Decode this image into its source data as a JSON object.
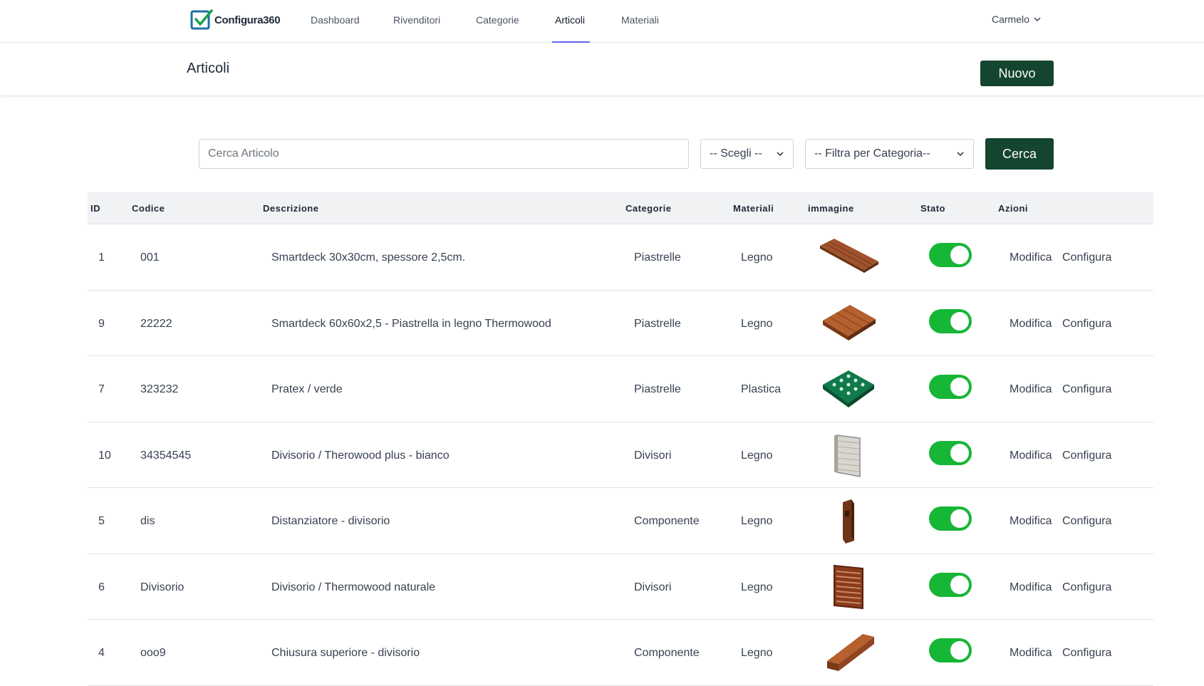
{
  "brand": {
    "name": "Configura360"
  },
  "nav": {
    "links": [
      "Dashboard",
      "Rivenditori",
      "Categorie",
      "Articoli",
      "Materiali"
    ],
    "active": "Articoli",
    "user": "Carmelo"
  },
  "page": {
    "title": "Articoli",
    "new_button": "Nuovo"
  },
  "search": {
    "placeholder": "Cerca Articolo",
    "select_choose": "-- Scegli --",
    "select_category": "-- Filtra per Categoria--",
    "button": "Cerca"
  },
  "table": {
    "headers": [
      "ID",
      "Codice",
      "Descrizione",
      "Categorie",
      "Materiali",
      "immagine",
      "Stato",
      "Azioni"
    ],
    "rows": [
      {
        "id": "1",
        "code": "001",
        "description": "Smartdeck 30x30cm, spessore 2,5cm.",
        "category": "Piastrelle",
        "material": "Legno",
        "image": "wood-deck-tile-long-icon",
        "active": true
      },
      {
        "id": "9",
        "code": "22222",
        "description": "Smartdeck 60x60x2,5 - Piastrella in legno Thermowood",
        "category": "Piastrelle",
        "material": "Legno",
        "image": "wood-deck-tile-square-icon",
        "active": true
      },
      {
        "id": "7",
        "code": "323232",
        "description": "Pratex / verde",
        "category": "Piastrelle",
        "material": "Plastica",
        "image": "green-grid-tile-icon",
        "active": true
      },
      {
        "id": "10",
        "code": "34354545",
        "description": "Divisorio / Therowood plus - bianco",
        "category": "Divisori",
        "material": "Legno",
        "image": "white-fence-panel-icon",
        "active": true
      },
      {
        "id": "5",
        "code": "dis",
        "description": "Distanziatore - divisorio",
        "category": "Componente",
        "material": "Legno",
        "image": "wood-spacer-icon",
        "active": true
      },
      {
        "id": "6",
        "code": "Divisorio",
        "description": "Divisorio / Thermowood naturale",
        "category": "Divisori",
        "material": "Legno",
        "image": "wood-fence-panel-icon",
        "active": true
      },
      {
        "id": "4",
        "code": "ooo9",
        "description": "Chiusura superiore - divisorio",
        "category": "Componente",
        "material": "Legno",
        "image": "wood-beam-icon",
        "active": true
      }
    ],
    "actions": {
      "edit": "Modifica",
      "configure": "Configura"
    }
  },
  "colors": {
    "primary": "#14452f",
    "toggle_on": "#16b636",
    "nav_active_underline": "#6366f1"
  }
}
